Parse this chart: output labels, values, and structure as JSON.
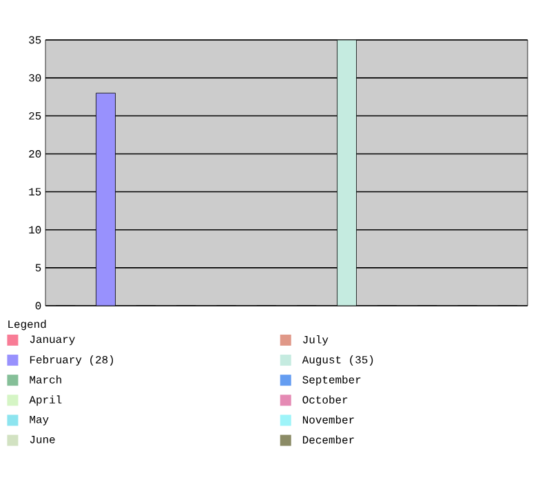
{
  "chart_data": {
    "type": "bar",
    "legend_title": "Legend",
    "categories": [
      null
    ],
    "series": [
      {
        "name": "January",
        "color": "#f87c96",
        "values": [
          0
        ]
      },
      {
        "name": "February (28)",
        "color": "#9891fd",
        "values": [
          28
        ]
      },
      {
        "name": "March",
        "color": "#85bf98",
        "values": [
          0
        ]
      },
      {
        "name": "April",
        "color": "#d5f5c5",
        "values": [
          0
        ]
      },
      {
        "name": "May",
        "color": "#8de4ef",
        "values": [
          0
        ]
      },
      {
        "name": "June",
        "color": "#d2e2c2",
        "values": [
          0
        ]
      },
      {
        "name": "July",
        "color": "#e09888",
        "values": [
          0
        ]
      },
      {
        "name": "August (35)",
        "color": "#c5ebe0",
        "values": [
          35
        ]
      },
      {
        "name": "September",
        "color": "#659df1",
        "values": [
          0
        ]
      },
      {
        "name": "October",
        "color": "#e58ab4",
        "values": [
          0
        ]
      },
      {
        "name": "November",
        "color": "#9ef4f9",
        "values": [
          0
        ]
      },
      {
        "name": "December",
        "color": "#8b8b66",
        "values": [
          0
        ]
      }
    ],
    "ylim": [
      0,
      35
    ],
    "yticks": [
      0,
      5,
      10,
      15,
      20,
      25,
      30,
      35
    ],
    "grid": "y",
    "tick_labels": "y",
    "legend": "bottom"
  }
}
